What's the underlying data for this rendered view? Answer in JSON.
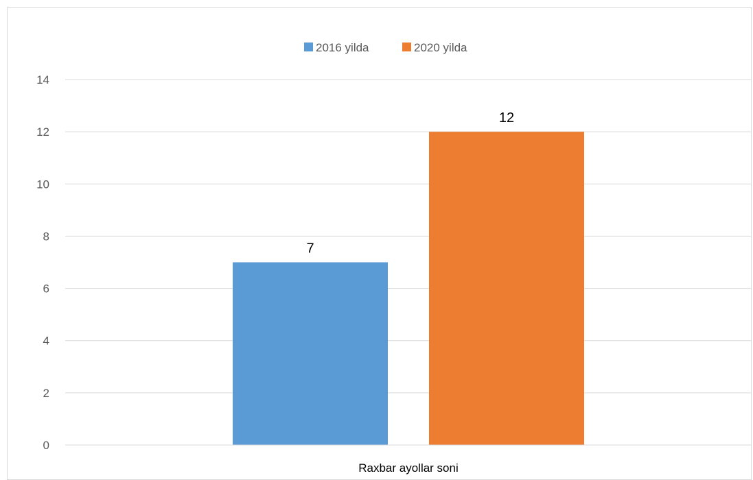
{
  "chart_data": {
    "type": "bar",
    "categories": [
      "Raxbar ayollar soni"
    ],
    "series": [
      {
        "name": "2016 yilda",
        "values": [
          7
        ],
        "color": "#5b9bd5"
      },
      {
        "name": "2020 yilda",
        "values": [
          12
        ],
        "color": "#ed7d31"
      }
    ],
    "title": "",
    "xlabel": "",
    "ylabel": "",
    "ylim": [
      0,
      14
    ],
    "yticks": [
      "0",
      "2",
      "4",
      "6",
      "8",
      "10",
      "12",
      "14"
    ],
    "grid": true,
    "legend_position": "top",
    "data_labels": true,
    "gridline_color": "#d9d9d9"
  }
}
